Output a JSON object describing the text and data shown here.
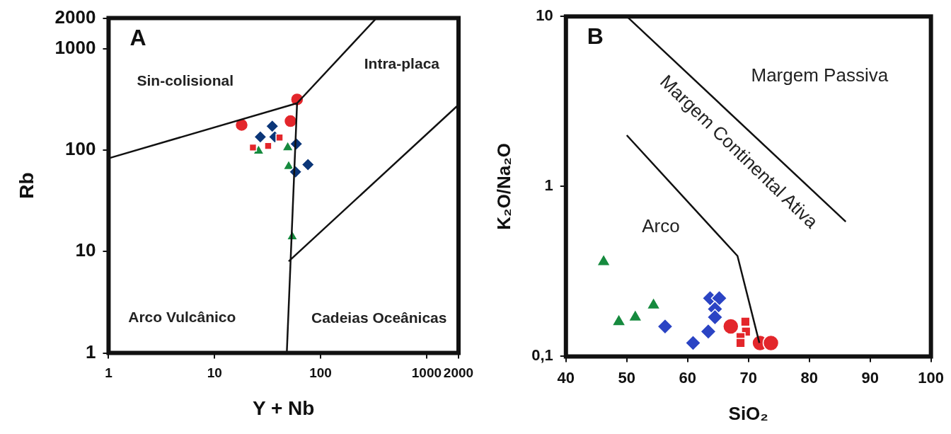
{
  "chart_data": [
    {
      "type": "scatter",
      "title": "A",
      "xlabel": "Y + Nb",
      "ylabel": "Rb",
      "log": "xy",
      "grid": false,
      "legend": false,
      "xlim": [
        1,
        2000
      ],
      "xticks": [
        1,
        10,
        100,
        1000,
        2000
      ],
      "ylim": [
        1,
        2000
      ],
      "yticks": [
        1,
        10,
        100,
        1000,
        2000
      ],
      "series": [
        {
          "type": "line",
          "color": "#111111",
          "marker": "none",
          "x": [
            1,
            60
          ],
          "values": [
            83,
            290
          ]
        },
        {
          "type": "line",
          "color": "#111111",
          "marker": "none",
          "x": [
            60,
            336
          ],
          "values": [
            290,
            2000
          ]
        },
        {
          "type": "line",
          "color": "#111111",
          "marker": "none",
          "x": [
            60,
            48
          ],
          "values": [
            290,
            1
          ]
        },
        {
          "type": "line",
          "color": "#111111",
          "marker": "none",
          "x": [
            50,
            2000
          ],
          "values": [
            8,
            280
          ]
        },
        {
          "type": "scatter",
          "color": "#e3262b",
          "marker": "circle",
          "x": [
            18,
            60
          ],
          "values": [
            177,
            316
          ]
        },
        {
          "type": "scatter",
          "color": "#e3262b",
          "marker": "circle",
          "x": [
            52
          ],
          "values": [
            193
          ]
        },
        {
          "type": "scatter",
          "color": "#e3262b",
          "marker": "square",
          "x": [
            23,
            32,
            41
          ],
          "values": [
            106,
            110,
            133
          ]
        },
        {
          "type": "scatter",
          "color": "#0b3678",
          "marker": "diamond",
          "x": [
            27,
            35,
            37,
            59,
            76,
            58
          ],
          "values": [
            135,
            172,
            135,
            115,
            72,
            61
          ]
        },
        {
          "type": "scatter",
          "color": "#168a3e",
          "marker": "triangle",
          "x": [
            26,
            49,
            50,
            54
          ],
          "values": [
            98,
            106,
            69,
            14
          ]
        }
      ],
      "annotations": [
        "Sin-colisional",
        "Intra-placa",
        "Arco Vulcânico",
        "Cadeias Oceânicas"
      ]
    },
    {
      "type": "scatter",
      "title": "B",
      "xlabel": "SiO₂",
      "ylabel": "K₂O/Na₂O",
      "log": "y",
      "grid": false,
      "legend": false,
      "xlim": [
        40,
        100
      ],
      "xticks": [
        40,
        50,
        60,
        70,
        80,
        90,
        100
      ],
      "ylim": [
        0.1,
        10
      ],
      "yticks": [
        {
          "value": 0.1,
          "label": "0,1"
        },
        1,
        10
      ],
      "series": [
        {
          "type": "line",
          "color": "#111111",
          "marker": "none",
          "x": [
            50,
            86
          ],
          "values": [
            10,
            0.62
          ]
        },
        {
          "type": "line",
          "color": "#111111",
          "marker": "none",
          "x": [
            50,
            68.2,
            71.8
          ],
          "values": [
            2,
            0.39,
            0.12
          ]
        },
        {
          "type": "scatter",
          "color": "#168a3e",
          "marker": "triangle",
          "x": [
            46.2,
            48.7,
            51.4,
            54.4
          ],
          "values": [
            0.36,
            0.16,
            0.17,
            0.2
          ]
        },
        {
          "type": "scatter",
          "color": "#2b44c4",
          "marker": "diamond",
          "x": [
            56.3,
            60.9,
            63.4,
            63.7,
            65.2,
            64.5,
            64.5
          ],
          "values": [
            0.15,
            0.12,
            0.14,
            0.22,
            0.22,
            0.19,
            0.17
          ]
        },
        {
          "type": "scatter",
          "color": "#e3262b",
          "marker": "circle",
          "x": [
            67.1
          ],
          "values": [
            0.15
          ]
        },
        {
          "type": "scatter",
          "color": "#e3262b",
          "marker": "square",
          "x": [
            69.5,
            69.6,
            68.7,
            68.7
          ],
          "values": [
            0.16,
            0.14,
            0.13,
            0.12
          ]
        },
        {
          "type": "scatter",
          "color": "#e3262b",
          "marker": "circle",
          "x": [
            71.9,
            73.7
          ],
          "values": [
            0.12,
            0.12
          ]
        }
      ],
      "annotations": [
        "Margem Passiva",
        "Margem Continental Ativa",
        "Arco"
      ]
    }
  ]
}
